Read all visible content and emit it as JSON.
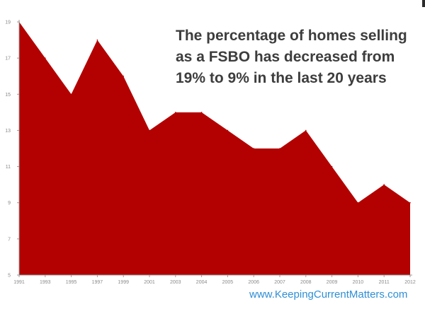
{
  "chart_data": {
    "type": "area",
    "title_lines": [
      "The percentage of homes selling",
      "as a FSBO has decreased from",
      "19% to 9% in the last 20 years"
    ],
    "x": [
      "1991",
      "1993",
      "1995",
      "1997",
      "1999",
      "2001",
      "2003",
      "2004",
      "2005",
      "2006",
      "2007",
      "2008",
      "2009",
      "2010",
      "2011",
      "2012"
    ],
    "values": [
      19,
      17,
      15,
      18,
      16,
      13,
      14,
      14,
      13,
      12,
      12,
      13,
      11,
      9,
      10,
      9
    ],
    "ylim": [
      5,
      19
    ],
    "y_ticks": [
      5,
      7,
      9,
      11,
      13,
      15,
      17,
      19
    ],
    "fill_color": "#b30000",
    "axis_color": "#9a9a9a",
    "grid": false,
    "legend": "none"
  },
  "watermark": "www.KeepingCurrentMatters.com"
}
